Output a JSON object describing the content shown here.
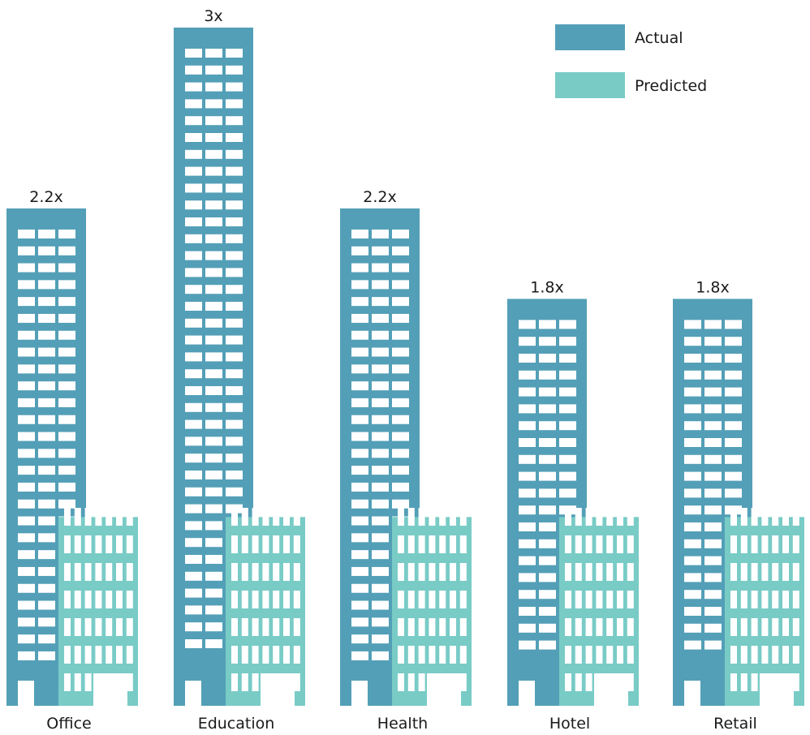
{
  "chart_data": {
    "type": "bar",
    "categories": [
      "Office",
      "Education",
      "Health",
      "Hotel",
      "Retail"
    ],
    "series": [
      {
        "name": "Actual",
        "values": [
          2.2,
          3,
          2.2,
          1.8,
          1.8
        ],
        "labels": [
          "2.2x",
          "3x",
          "2.2x",
          "1.8x",
          "1.8x"
        ]
      },
      {
        "name": "Predicted",
        "values": [
          1,
          1,
          1,
          1,
          1
        ]
      }
    ],
    "ylim": [
      0,
      3
    ],
    "grid": false,
    "legend_position": "top-right",
    "colors": {
      "Actual": "#539fb7",
      "Predicted": "#79cbc6",
      "window": "#ffffff"
    }
  }
}
